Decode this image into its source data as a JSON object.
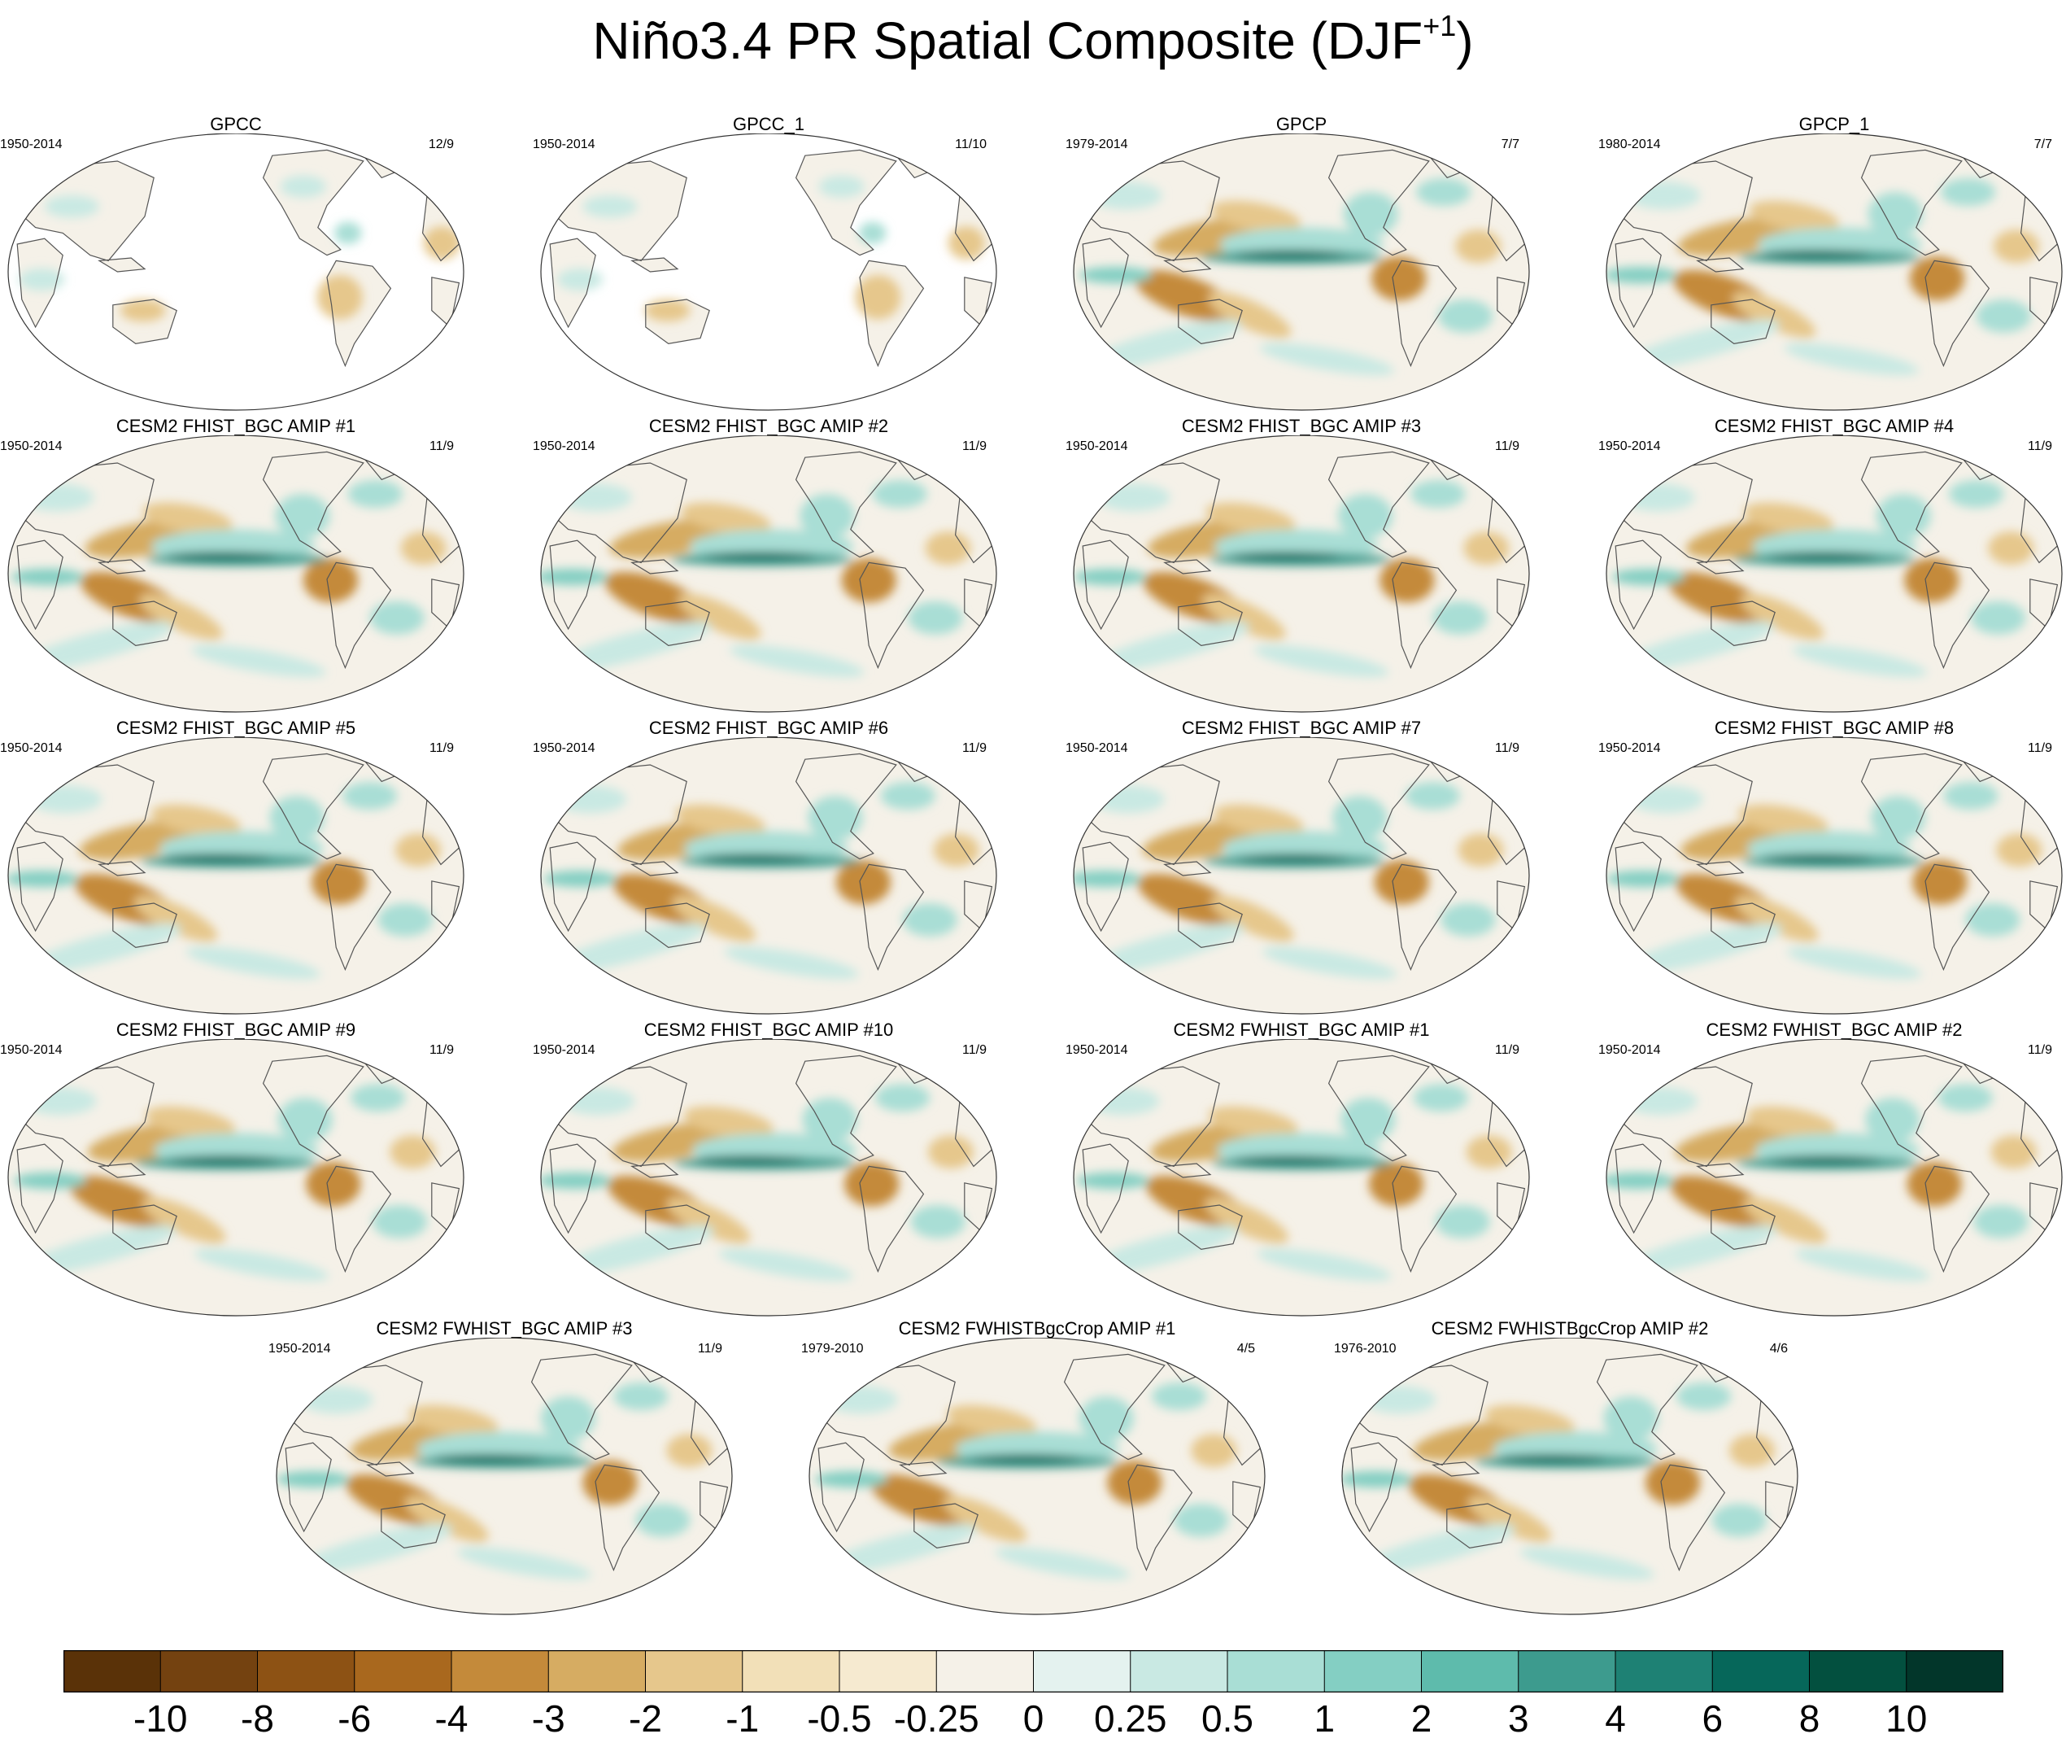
{
  "title": {
    "main": "Niño3.4 PR Spatial Composite (DJF",
    "superscript": "+1",
    "close": ")"
  },
  "panels": [
    {
      "title": "GPCC",
      "years": "1950-2014",
      "count": "12/9",
      "kind": "gpcc"
    },
    {
      "title": "GPCC_1",
      "years": "1950-2014",
      "count": "11/10",
      "kind": "gpcc"
    },
    {
      "title": "GPCP",
      "years": "1979-2014",
      "count": "7/7",
      "kind": "full"
    },
    {
      "title": "GPCP_1",
      "years": "1980-2014",
      "count": "7/7",
      "kind": "full"
    },
    {
      "title": "CESM2 FHIST_BGC AMIP #1",
      "years": "1950-2014",
      "count": "11/9",
      "kind": "full"
    },
    {
      "title": "CESM2 FHIST_BGC AMIP #2",
      "years": "1950-2014",
      "count": "11/9",
      "kind": "full"
    },
    {
      "title": "CESM2 FHIST_BGC AMIP #3",
      "years": "1950-2014",
      "count": "11/9",
      "kind": "full"
    },
    {
      "title": "CESM2 FHIST_BGC AMIP #4",
      "years": "1950-2014",
      "count": "11/9",
      "kind": "full"
    },
    {
      "title": "CESM2 FHIST_BGC AMIP #5",
      "years": "1950-2014",
      "count": "11/9",
      "kind": "full"
    },
    {
      "title": "CESM2 FHIST_BGC AMIP #6",
      "years": "1950-2014",
      "count": "11/9",
      "kind": "full"
    },
    {
      "title": "CESM2 FHIST_BGC AMIP #7",
      "years": "1950-2014",
      "count": "11/9",
      "kind": "full"
    },
    {
      "title": "CESM2 FHIST_BGC AMIP #8",
      "years": "1950-2014",
      "count": "11/9",
      "kind": "full"
    },
    {
      "title": "CESM2 FHIST_BGC AMIP #9",
      "years": "1950-2014",
      "count": "11/9",
      "kind": "full"
    },
    {
      "title": "CESM2 FHIST_BGC AMIP #10",
      "years": "1950-2014",
      "count": "11/9",
      "kind": "full"
    },
    {
      "title": "CESM2 FWHIST_BGC AMIP #1",
      "years": "1950-2014",
      "count": "11/9",
      "kind": "full"
    },
    {
      "title": "CESM2 FWHIST_BGC AMIP #2",
      "years": "1950-2014",
      "count": "11/9",
      "kind": "full"
    },
    {
      "title": "CESM2 FWHIST_BGC AMIP #3",
      "years": "1950-2014",
      "count": "11/9",
      "kind": "full"
    },
    {
      "title": "CESM2 FWHISTBgcCrop AMIP #1",
      "years": "1979-2010",
      "count": "4/5",
      "kind": "full"
    },
    {
      "title": "CESM2 FWHISTBgcCrop AMIP #2",
      "years": "1976-2010",
      "count": "4/6",
      "kind": "full"
    }
  ],
  "colorbar": {
    "labels": [
      "-10",
      "-8",
      "-6",
      "-4",
      "-3",
      "-2",
      "-1",
      "-0.5",
      "-0.25",
      "0",
      "0.25",
      "0.5",
      "1",
      "2",
      "3",
      "4",
      "6",
      "8",
      "10"
    ],
    "colors": [
      "#5a3208",
      "#744210",
      "#8d5214",
      "#a9681e",
      "#c48a3a",
      "#d6ac62",
      "#e6c78c",
      "#f2e0b8",
      "#f6ead0",
      "#f5f1e8",
      "#e4f2ef",
      "#c9e9e3",
      "#a9ded5",
      "#84cfc3",
      "#5ebbac",
      "#3d9b8e",
      "#1e8174",
      "#06675a",
      "#03503f",
      "#02362a"
    ]
  }
}
